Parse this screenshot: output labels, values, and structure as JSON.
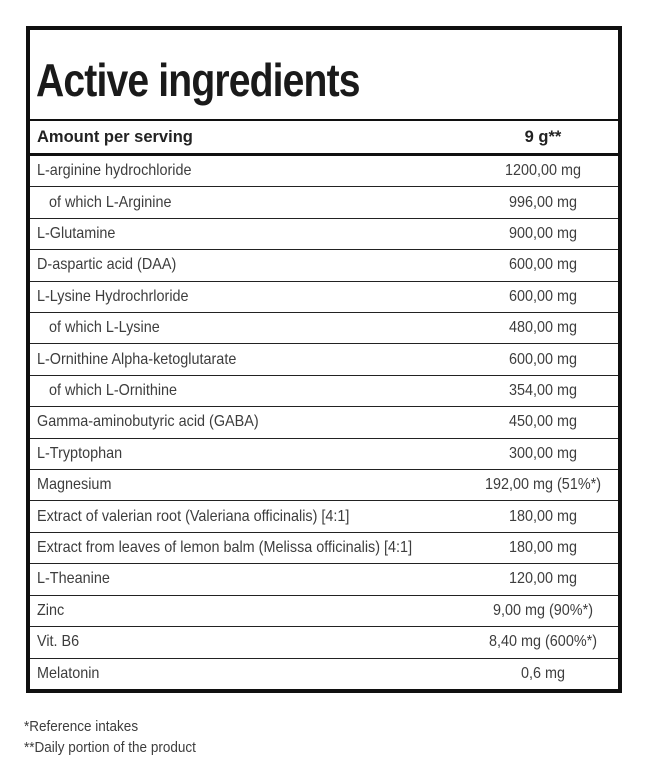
{
  "table": {
    "title": "Active ingredients",
    "header": {
      "label": "Amount per serving",
      "value": "9 g**"
    },
    "rows": [
      {
        "name": "L-arginine hydrochloride",
        "value": "1200,00 mg",
        "indent": false
      },
      {
        "name": "of which L-Arginine",
        "value": "996,00 mg",
        "indent": true
      },
      {
        "name": "L-Glutamine",
        "value": "900,00 mg",
        "indent": false
      },
      {
        "name": "D-aspartic acid (DAA)",
        "value": "600,00 mg",
        "indent": false
      },
      {
        "name": "L-Lysine Hydrochrloride",
        "value": "600,00 mg",
        "indent": false
      },
      {
        "name": "of which L-Lysine",
        "value": "480,00 mg",
        "indent": true
      },
      {
        "name": "L-Ornithine Alpha-ketoglutarate",
        "value": "600,00 mg",
        "indent": false
      },
      {
        "name": "of which L-Ornithine",
        "value": "354,00 mg",
        "indent": true
      },
      {
        "name": "Gamma-aminobutyric acid (GABA)",
        "value": "450,00 mg",
        "indent": false
      },
      {
        "name": "L-Tryptophan",
        "value": "300,00 mg",
        "indent": false
      },
      {
        "name": "Magnesium",
        "value": "192,00 mg (51%*)",
        "indent": false
      },
      {
        "name": "Extract of valerian root (Valeriana officinalis) [4:1]",
        "value": "180,00 mg",
        "indent": false
      },
      {
        "name": "Extract from leaves of lemon balm (Melissa officinalis) [4:1]",
        "value": "180,00 mg",
        "indent": false
      },
      {
        "name": "L-Theanine",
        "value": "120,00 mg",
        "indent": false
      },
      {
        "name": "Zinc",
        "value": "9,00 mg (90%*)",
        "indent": false
      },
      {
        "name": "Vit. B6",
        "value": "8,40 mg (600%*)",
        "indent": false
      },
      {
        "name": "Melatonin",
        "value": "0,6 mg",
        "indent": false
      }
    ]
  },
  "footnotes": [
    "*Reference intakes",
    "**Daily portion of the product"
  ],
  "colors": {
    "border": "#101010",
    "title_text": "#1a1a1a",
    "header_text": "#222222",
    "body_text": "#3d3d3d",
    "background": "#ffffff"
  }
}
